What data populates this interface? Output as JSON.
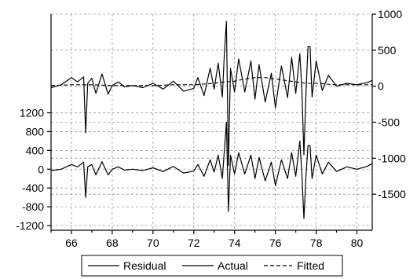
{
  "chart_data": {
    "type": "line",
    "x_ticks": [
      "66",
      "68",
      "70",
      "72",
      "74",
      "76",
      "78",
      "80"
    ],
    "xlim": [
      1965,
      1980.75
    ],
    "right_axis": {
      "ticks": [
        "1000",
        "500",
        "0",
        "-500",
        "-1000",
        "-1500"
      ],
      "tick_values": [
        1000,
        500,
        0,
        -500,
        -1000,
        -1500
      ],
      "range": [
        -2000,
        1000
      ]
    },
    "left_axis": {
      "ticks": [
        "1200",
        "800",
        "400",
        "0",
        "-400",
        "-800",
        "-1200"
      ],
      "tick_values": [
        1200,
        800,
        400,
        0,
        -400,
        -800,
        -1200
      ],
      "range": [
        -1300,
        3300
      ]
    },
    "grid": true,
    "legend_position": "bottom",
    "series": [
      {
        "name": "Residual",
        "axis": "left",
        "style": "solid",
        "x": [
          1965.0,
          1965.5,
          1966.0,
          1966.3,
          1966.6,
          1966.7,
          1966.8,
          1967.0,
          1967.2,
          1967.5,
          1967.8,
          1968.0,
          1968.3,
          1968.6,
          1969.0,
          1969.5,
          1970.0,
          1970.5,
          1971.0,
          1971.5,
          1972.0,
          1972.2,
          1972.5,
          1972.8,
          1973.0,
          1973.2,
          1973.4,
          1973.5,
          1973.6,
          1973.7,
          1973.8,
          1974.0,
          1974.2,
          1974.5,
          1974.8,
          1975.0,
          1975.2,
          1975.5,
          1975.8,
          1976.0,
          1976.3,
          1976.6,
          1976.8,
          1977.0,
          1977.2,
          1977.3,
          1977.4,
          1977.5,
          1977.6,
          1977.7,
          1977.8,
          1978.0,
          1978.3,
          1978.6,
          1979.0,
          1979.5,
          1980.0,
          1980.5,
          1980.75
        ],
        "y": [
          -30,
          0,
          100,
          50,
          150,
          -600,
          50,
          100,
          -120,
          160,
          -120,
          0,
          50,
          -20,
          0,
          -30,
          30,
          -50,
          60,
          -80,
          -40,
          100,
          -150,
          200,
          -60,
          300,
          -200,
          400,
          1000,
          -900,
          300,
          -100,
          350,
          -100,
          300,
          -200,
          250,
          -250,
          150,
          -350,
          200,
          -200,
          350,
          -150,
          600,
          -100,
          -1050,
          -150,
          500,
          500,
          -200,
          300,
          -100,
          150,
          -50,
          50,
          0,
          60,
          120
        ]
      },
      {
        "name": "Actual",
        "axis": "right",
        "style": "solid",
        "x": [
          1965.0,
          1965.5,
          1966.0,
          1966.3,
          1966.6,
          1966.7,
          1966.8,
          1967.0,
          1967.2,
          1967.5,
          1967.8,
          1968.0,
          1968.3,
          1968.6,
          1969.0,
          1969.5,
          1970.0,
          1970.5,
          1971.0,
          1971.5,
          1972.0,
          1972.2,
          1972.5,
          1972.8,
          1973.0,
          1973.2,
          1973.4,
          1973.5,
          1973.6,
          1973.7,
          1973.8,
          1974.0,
          1974.2,
          1974.5,
          1974.8,
          1975.0,
          1975.2,
          1975.5,
          1975.8,
          1976.0,
          1976.3,
          1976.6,
          1976.8,
          1977.0,
          1977.2,
          1977.3,
          1977.4,
          1977.5,
          1977.6,
          1977.7,
          1977.8,
          1978.0,
          1978.3,
          1978.6,
          1979.0,
          1979.5,
          1980.0,
          1980.5,
          1980.75
        ],
        "y": [
          -20,
          20,
          120,
          60,
          130,
          -650,
          40,
          110,
          -100,
          170,
          -110,
          10,
          60,
          -10,
          10,
          -20,
          40,
          -40,
          70,
          -70,
          -30,
          120,
          -130,
          250,
          -40,
          320,
          -150,
          450,
          900,
          -1100,
          250,
          -80,
          380,
          -80,
          350,
          -180,
          300,
          -220,
          180,
          -300,
          280,
          -160,
          400,
          -100,
          450,
          -50,
          -950,
          -100,
          550,
          550,
          -150,
          350,
          -60,
          150,
          0,
          40,
          20,
          50,
          80
        ]
      },
      {
        "name": "Fitted",
        "axis": "right",
        "style": "dashed",
        "x": [
          1965.0,
          1966.0,
          1967.0,
          1968.0,
          1969.0,
          1970.0,
          1971.0,
          1972.0,
          1973.0,
          1973.5,
          1974.0,
          1974.5,
          1975.0,
          1975.5,
          1976.0,
          1976.5,
          1977.0,
          1977.5,
          1978.0,
          1978.5,
          1979.0,
          1980.0,
          1980.75
        ],
        "y": [
          10,
          20,
          20,
          10,
          10,
          10,
          20,
          20,
          40,
          60,
          70,
          100,
          120,
          120,
          100,
          80,
          60,
          40,
          40,
          30,
          20,
          20,
          20
        ]
      }
    ]
  }
}
